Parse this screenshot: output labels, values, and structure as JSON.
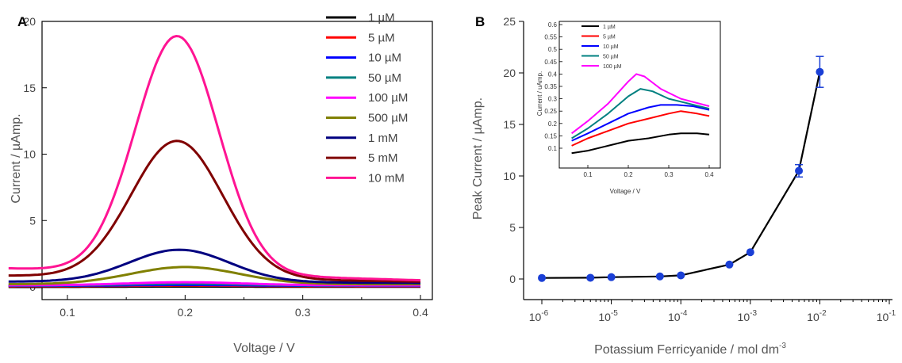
{
  "chart_data": [
    {
      "panel_label": "A",
      "type": "line",
      "xlabel": "Voltage / V",
      "ylabel": "Current / µAmp.",
      "xlim": [
        0.05,
        0.4
      ],
      "ylim": [
        0,
        20
      ],
      "x_ticks": [
        "0.1",
        "0.2",
        "0.3",
        "0.4"
      ],
      "y_ticks": [
        "0",
        "5",
        "10",
        "15",
        "20"
      ],
      "legend_position": "top-right",
      "series": [
        {
          "name": "1 µM",
          "color": "#000000",
          "peak": 0.03,
          "base_start": 0.0,
          "base_end": 0.02,
          "center": 0.2,
          "width": 0.07
        },
        {
          "name": "5 µM",
          "color": "#ff0000",
          "peak": 0.1,
          "base_start": 0.05,
          "base_end": 0.05,
          "center": 0.2,
          "width": 0.07
        },
        {
          "name": "10 µM",
          "color": "#0000ff",
          "peak": 0.15,
          "base_start": 0.08,
          "base_end": 0.08,
          "center": 0.2,
          "width": 0.07
        },
        {
          "name": "50 µM",
          "color": "#008080",
          "peak": 0.25,
          "base_start": 0.1,
          "base_end": 0.1,
          "center": 0.2,
          "width": 0.07
        },
        {
          "name": "100 µM",
          "color": "#ff00ff",
          "peak": 0.35,
          "base_start": 0.12,
          "base_end": 0.12,
          "center": 0.2,
          "width": 0.07
        },
        {
          "name": "500 µM",
          "color": "#808000",
          "peak": 1.5,
          "base_start": 0.2,
          "base_end": 0.2,
          "center": 0.2,
          "width": 0.065
        },
        {
          "name": "1 mM",
          "color": "#000080",
          "peak": 2.8,
          "base_start": 0.4,
          "base_end": 0.3,
          "center": 0.195,
          "width": 0.06
        },
        {
          "name": "5 mM",
          "color": "#800000",
          "peak": 11.0,
          "base_start": 0.85,
          "base_end": 0.4,
          "center": 0.193,
          "width": 0.055
        },
        {
          "name": "10 mM",
          "color": "#ff1493",
          "peak": 18.9,
          "base_start": 1.4,
          "base_end": 0.5,
          "center": 0.193,
          "width": 0.05
        }
      ]
    },
    {
      "panel_label": "B",
      "type": "scatter",
      "xlabel": "Potassium Ferricyanide / mol dm",
      "xlabel_superscript": "-3",
      "ylabel": "Peak Current / µAmp.",
      "x_scale": "log",
      "xlim": [
        1e-06,
        0.1
      ],
      "ylim": [
        -1,
        25
      ],
      "x_ticks": [
        {
          "base": "10",
          "exp": "-6"
        },
        {
          "base": "10",
          "exp": "-5"
        },
        {
          "base": "10",
          "exp": "-4"
        },
        {
          "base": "10",
          "exp": "-3"
        },
        {
          "base": "10",
          "exp": "-2"
        },
        {
          "base": "10",
          "exp": "-1"
        }
      ],
      "y_ticks": [
        "0",
        "5",
        "10",
        "15",
        "20",
        "25"
      ],
      "marker_color": "#1a3fd6",
      "line_color": "#000000",
      "points": [
        {
          "x": 1e-06,
          "y": 0.1,
          "err": 0
        },
        {
          "x": 5e-06,
          "y": 0.12,
          "err": 0
        },
        {
          "x": 1e-05,
          "y": 0.18,
          "err": 0
        },
        {
          "x": 5e-05,
          "y": 0.25,
          "err": 0
        },
        {
          "x": 0.0001,
          "y": 0.35,
          "err": 0
        },
        {
          "x": 0.0005,
          "y": 1.4,
          "err": 0
        },
        {
          "x": 0.001,
          "y": 2.6,
          "err": 0
        },
        {
          "x": 0.005,
          "y": 10.5,
          "err": 0.6
        },
        {
          "x": 0.01,
          "y": 20.1,
          "err": 1.5
        }
      ],
      "inset": {
        "type": "line",
        "xlabel": "Voltage / V",
        "ylabel": "Current / uAmp.",
        "xlim": [
          0.05,
          0.42
        ],
        "ylim": [
          0.05,
          0.6
        ],
        "x_ticks": [
          "0.1",
          "0.2",
          "0.3",
          "0.4"
        ],
        "y_ticks": [
          "0.1",
          "0.15",
          "0.2",
          "0.25",
          "0.3",
          "0.35",
          "0.4",
          "0.45",
          "0.5",
          "0.55",
          "0.6"
        ],
        "legend_position": "top-left",
        "series": [
          {
            "name": "1 µM",
            "color": "#000000",
            "x": [
              0.06,
              0.1,
              0.15,
              0.2,
              0.25,
              0.3,
              0.33,
              0.37,
              0.4
            ],
            "y": [
              0.08,
              0.09,
              0.11,
              0.13,
              0.14,
              0.155,
              0.16,
              0.16,
              0.155
            ]
          },
          {
            "name": "5 µM",
            "color": "#ff0000",
            "x": [
              0.06,
              0.1,
              0.15,
              0.2,
              0.25,
              0.3,
              0.33,
              0.37,
              0.4
            ],
            "y": [
              0.11,
              0.14,
              0.17,
              0.2,
              0.22,
              0.24,
              0.25,
              0.24,
              0.23
            ]
          },
          {
            "name": "10 µM",
            "color": "#0000ff",
            "x": [
              0.06,
              0.1,
              0.15,
              0.2,
              0.25,
              0.28,
              0.32,
              0.36,
              0.4
            ],
            "y": [
              0.13,
              0.16,
              0.2,
              0.24,
              0.265,
              0.275,
              0.275,
              0.27,
              0.255
            ]
          },
          {
            "name": "50 µM",
            "color": "#008080",
            "x": [
              0.06,
              0.1,
              0.15,
              0.2,
              0.23,
              0.26,
              0.3,
              0.35,
              0.4
            ],
            "y": [
              0.14,
              0.18,
              0.24,
              0.31,
              0.34,
              0.33,
              0.3,
              0.28,
              0.26
            ]
          },
          {
            "name": "100 µM",
            "color": "#ff00ff",
            "x": [
              0.06,
              0.1,
              0.15,
              0.2,
              0.22,
              0.24,
              0.28,
              0.33,
              0.4
            ],
            "y": [
              0.16,
              0.21,
              0.28,
              0.37,
              0.4,
              0.39,
              0.34,
              0.3,
              0.27
            ]
          }
        ]
      }
    }
  ]
}
